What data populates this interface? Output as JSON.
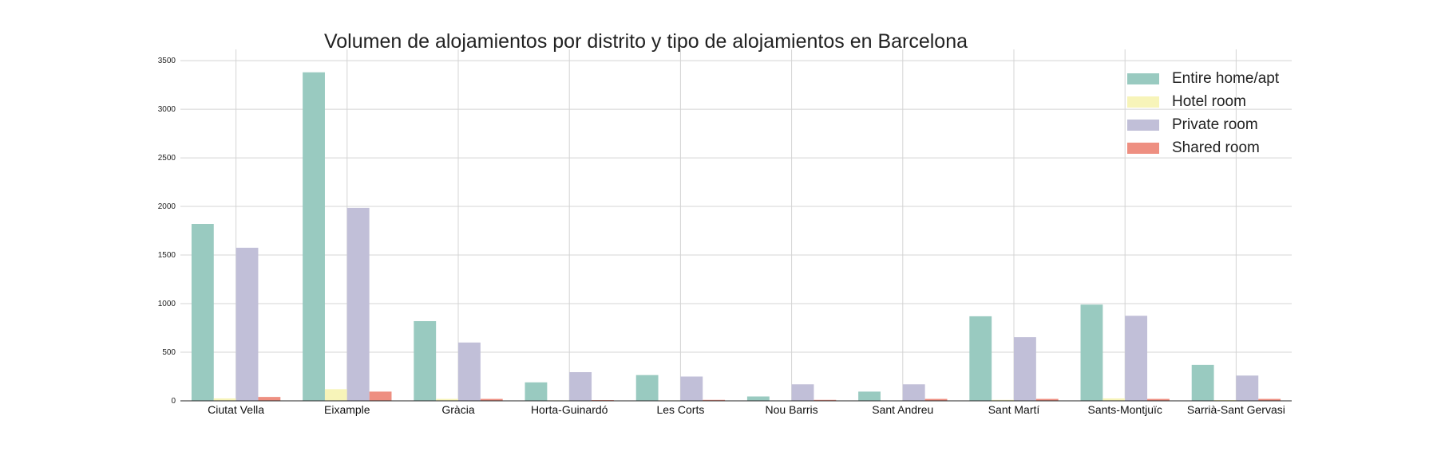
{
  "chart_data": {
    "type": "bar",
    "title": "Volumen de alojamientos por distrito y tipo de alojamientos en Barcelona",
    "xlabel": "",
    "ylabel": "",
    "ylim": [
      0,
      3550
    ],
    "yticks": [
      "0",
      "500",
      "1000",
      "1500",
      "2000",
      "2500",
      "3000",
      "3500"
    ],
    "grid": true,
    "legend_position": "top-right",
    "categories": [
      "Ciutat Vella",
      "Eixample",
      "Gràcia",
      "Horta-Guinardó",
      "Les Corts",
      "Nou Barris",
      "Sant Andreu",
      "Sant Martí",
      "Sants-Montjuïc",
      "Sarrià-Sant Gervasi"
    ],
    "series": [
      {
        "name": "Entire home/apt",
        "color": "#99cac0",
        "values": [
          1820,
          3380,
          820,
          190,
          265,
          45,
          95,
          870,
          990,
          370
        ]
      },
      {
        "name": "Hotel room",
        "color": "#f7f4b9",
        "values": [
          25,
          120,
          20,
          5,
          5,
          2,
          2,
          10,
          25,
          8
        ]
      },
      {
        "name": "Private room",
        "color": "#c1bfd8",
        "values": [
          1575,
          1985,
          600,
          295,
          250,
          170,
          170,
          655,
          875,
          260
        ]
      },
      {
        "name": "Shared room",
        "color": "#ee8f81",
        "values": [
          40,
          95,
          20,
          8,
          10,
          10,
          20,
          20,
          20,
          20
        ]
      }
    ]
  }
}
